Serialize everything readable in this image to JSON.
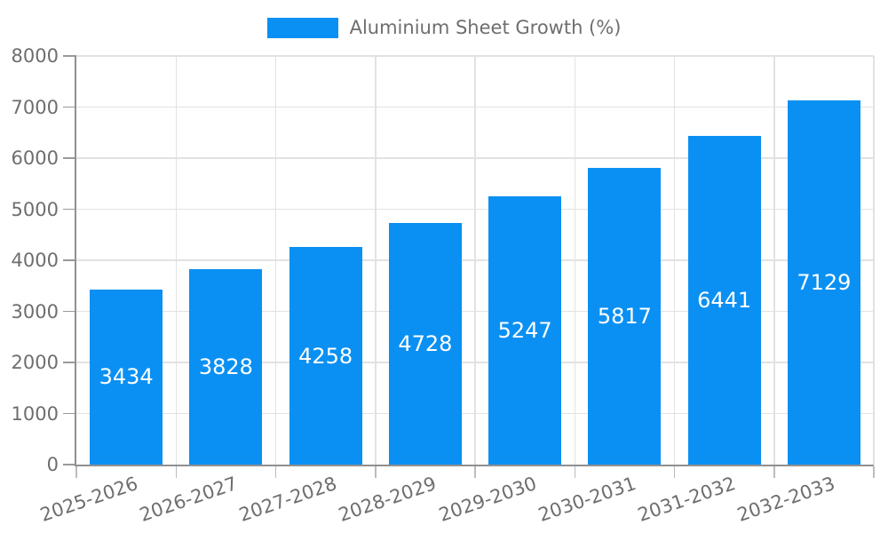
{
  "chart_data": {
    "type": "bar",
    "title": "Aluminium Sheet Growth (%)",
    "legend": [
      "Aluminium Sheet Growth (%)"
    ],
    "legend_position": "top-center",
    "categories": [
      "2025-2026",
      "2026-2027",
      "2027-2028",
      "2028-2029",
      "2029-2030",
      "2030-2031",
      "2031-2032",
      "2032-2033"
    ],
    "values": [
      3434,
      3828,
      4258,
      4728,
      5247,
      5817,
      6441,
      7129
    ],
    "value_label_position": "inside-center",
    "xlabel": "",
    "ylabel": "",
    "ylim": [
      0,
      8000
    ],
    "yticks": [
      0,
      1000,
      2000,
      3000,
      4000,
      5000,
      6000,
      7000,
      8000
    ],
    "grid": "both",
    "x_label_rotation_deg": -19,
    "colors": {
      "bar": "#0a90f3",
      "value_label": "#ffffff",
      "tick_label": "#6e6e6e",
      "legend_text": "#6e6e6e",
      "gridline": "#e2e2e2",
      "axis_line": "#909090",
      "y_tick": "#999999",
      "x_tick": "#bcbcbc",
      "background": "#ffffff"
    }
  }
}
